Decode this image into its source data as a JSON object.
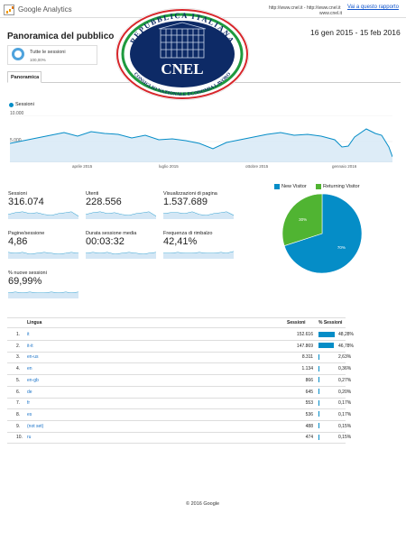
{
  "header": {
    "app_title": "Google Analytics",
    "urls": "http://www.cnel.it - http://www.cnel.it",
    "url_second": "www.cnel.it",
    "report_link": "Vai a questo rapporto"
  },
  "page": {
    "title": "Panoramica del pubblico",
    "date_range": "16 gen 2015 - 15 feb 2016"
  },
  "segment": {
    "label": "Tutte le sessioni",
    "percent": "100,00%"
  },
  "tabs": [
    {
      "label": "Panoramica"
    }
  ],
  "overview_chart": {
    "legend": "Sessioni",
    "y_top": "10.000",
    "y_mid": "5.000",
    "x_labels": [
      "aprile 2015",
      "luglio 2015",
      "ottobre 2015",
      "gennaio 2016"
    ]
  },
  "metrics": [
    {
      "label": "Sessioni",
      "value": "316.074"
    },
    {
      "label": "Utenti",
      "value": "228.556"
    },
    {
      "label": "Visualizzazioni di pagina",
      "value": "1.537.689"
    },
    {
      "label": "Pagine/sessione",
      "value": "4,86"
    },
    {
      "label": "Durata sessione media",
      "value": "00:03:32"
    },
    {
      "label": "Frequenza di rimbalzo",
      "value": "42,41%"
    },
    {
      "label": "% nuove sessioni",
      "value": "69,99%"
    }
  ],
  "pie": {
    "legend": [
      {
        "name": "New Visitor",
        "color": "#058dc7"
      },
      {
        "name": "Returning Visitor",
        "color": "#50b432"
      }
    ],
    "slices": [
      {
        "name": "New Visitor",
        "value": 70,
        "label": "70%",
        "color": "#058dc7"
      },
      {
        "name": "Returning Visitor",
        "value": 30,
        "label": "30%",
        "color": "#50b432"
      }
    ]
  },
  "language_table": {
    "headers": {
      "language": "Lingua",
      "sessions": "Sessioni",
      "pct": "% Sessioni"
    },
    "rows": [
      {
        "num": "1.",
        "lang": "it",
        "sessions": "152.616",
        "pct": "48,28%",
        "share": 48.28
      },
      {
        "num": "2.",
        "lang": "it-it",
        "sessions": "147.869",
        "pct": "46,78%",
        "share": 46.78
      },
      {
        "num": "3.",
        "lang": "en-us",
        "sessions": "8.311",
        "pct": "2,63%",
        "share": 2.63
      },
      {
        "num": "4.",
        "lang": "en",
        "sessions": "1.134",
        "pct": "0,36%",
        "share": 0.36
      },
      {
        "num": "5.",
        "lang": "en-gb",
        "sessions": "866",
        "pct": "0,27%",
        "share": 0.27
      },
      {
        "num": "6.",
        "lang": "de",
        "sessions": "645",
        "pct": "0,20%",
        "share": 0.2
      },
      {
        "num": "7.",
        "lang": "fr",
        "sessions": "553",
        "pct": "0,17%",
        "share": 0.17
      },
      {
        "num": "8.",
        "lang": "es",
        "sessions": "536",
        "pct": "0,17%",
        "share": 0.17
      },
      {
        "num": "9.",
        "lang": "(not set)",
        "sessions": "488",
        "pct": "0,15%",
        "share": 0.15
      },
      {
        "num": "10.",
        "lang": "ru",
        "sessions": "474",
        "pct": "0,15%",
        "share": 0.15
      }
    ]
  },
  "logo": {
    "top_text": "REPUBBLICA ITALIANA",
    "bottom_text": "CONSIGLIO NAZIONALE ECONOMIA LAVORO",
    "center_text": "CNEL"
  },
  "footer": "© 2016 Google"
}
